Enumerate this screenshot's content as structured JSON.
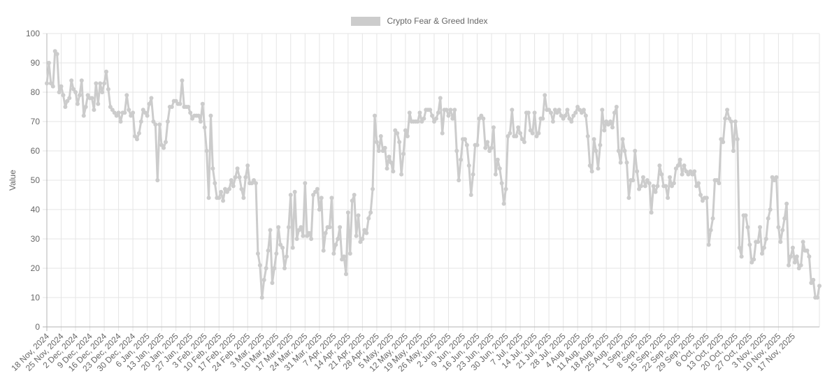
{
  "chart_data": {
    "type": "line",
    "title": "",
    "legend": {
      "label": "Crypto Fear & Greed Index",
      "position": "top",
      "color": "#cccccc"
    },
    "xlabel": "",
    "ylabel": "Value",
    "ylim": [
      0,
      100
    ],
    "y_ticks": [
      0,
      10,
      20,
      30,
      40,
      50,
      60,
      70,
      80,
      90,
      100
    ],
    "grid": true,
    "line_color": "#cccccc",
    "x_start": "18 Nov, 2024",
    "x_end": "20 Nov, 2025",
    "x_tick_labels": [
      "18 Nov, 2024",
      "25 Nov, 2024",
      "2 Dec, 2024",
      "9 Dec, 2024",
      "16 Dec, 2024",
      "23 Dec, 2024",
      "30 Dec, 2024",
      "6 Jan, 2025",
      "13 Jan, 2025",
      "20 Jan, 2025",
      "27 Jan, 2025",
      "3 Feb, 2025",
      "10 Feb, 2025",
      "17 Feb, 2025",
      "24 Feb, 2025",
      "3 Mar, 2025",
      "10 Mar, 2025",
      "17 Mar, 2025",
      "24 Mar, 2025",
      "31 Mar, 2025",
      "7 Apr, 2025",
      "14 Apr, 2025",
      "21 Apr, 2025",
      "28 Apr, 2025",
      "5 May, 2025",
      "12 May, 2025",
      "19 May, 2025",
      "26 May, 2025",
      "2 Jun, 2025",
      "9 Jun, 2025",
      "16 Jun, 2025",
      "23 Jun, 2025",
      "30 Jun, 2025",
      "7 Jul, 2025",
      "14 Jul, 2025",
      "21 Jul, 2025",
      "28 Jul, 2025",
      "4 Aug, 2025",
      "11 Aug, 2025",
      "18 Aug, 2025",
      "25 Aug, 2025",
      "1 Sep, 2025",
      "8 Sep, 2025",
      "15 Sep, 2025",
      "22 Sep, 2025",
      "29 Sep, 2025",
      "6 Oct, 2025",
      "13 Oct, 2025",
      "20 Oct, 2025",
      "27 Oct, 2025",
      "3 Nov, 2025",
      "10 Nov, 2025",
      "17 Nov, 2025"
    ],
    "series": [
      {
        "name": "Crypto Fear & Greed Index",
        "frequency": "daily",
        "values": [
          83,
          90,
          83,
          82,
          94,
          93,
          80,
          82,
          79,
          75,
          77,
          78,
          84,
          81,
          80,
          76,
          79,
          84,
          72,
          75,
          79,
          78,
          78,
          74,
          83,
          76,
          83,
          80,
          83,
          87,
          81,
          75,
          74,
          73,
          72,
          73,
          70,
          73,
          73,
          79,
          74,
          72,
          73,
          65,
          64,
          66,
          70,
          74,
          73,
          72,
          76,
          78,
          70,
          69,
          50,
          69,
          62,
          61,
          63,
          70,
          75,
          75,
          77,
          77,
          76,
          76,
          84,
          75,
          75,
          75,
          73,
          71,
          72,
          72,
          72,
          70,
          76,
          68,
          60,
          44,
          72,
          54,
          49,
          44,
          44,
          46,
          43,
          47,
          46,
          47,
          50,
          48,
          51,
          54,
          51,
          47,
          44,
          51,
          55,
          49,
          49,
          50,
          49,
          25,
          21,
          10,
          16,
          20,
          26,
          33,
          15,
          20,
          25,
          34,
          28,
          27,
          20,
          24,
          34,
          45,
          27,
          46,
          30,
          33,
          34,
          31,
          49,
          31,
          32,
          30,
          45,
          46,
          47,
          40,
          44,
          26,
          32,
          34,
          34,
          44,
          25,
          28,
          30,
          34,
          23,
          24,
          18,
          39,
          25,
          43,
          45,
          31,
          38,
          29,
          30,
          33,
          32,
          37,
          39,
          47,
          72,
          63,
          60,
          65,
          60,
          61,
          54,
          58,
          56,
          53,
          67,
          66,
          63,
          52,
          59,
          67,
          65,
          73,
          70,
          70,
          70,
          70,
          73,
          70,
          71,
          74,
          74,
          74,
          72,
          70,
          71,
          73,
          78,
          66,
          74,
          74,
          72,
          74,
          71,
          74,
          60,
          50,
          57,
          64,
          64,
          62,
          55,
          45,
          52,
          62,
          62,
          71,
          72,
          71,
          61,
          63,
          60,
          61,
          68,
          52,
          57,
          54,
          49,
          42,
          47,
          65,
          66,
          74,
          65,
          65,
          68,
          66,
          64,
          63,
          73,
          73,
          67,
          66,
          73,
          65,
          66,
          71,
          71,
          79,
          74,
          74,
          73,
          70,
          74,
          73,
          74,
          72,
          71,
          72,
          74,
          71,
          70,
          72,
          73,
          75,
          74,
          73,
          74,
          72,
          65,
          55,
          53,
          64,
          60,
          54,
          62,
          74,
          67,
          70,
          69,
          70,
          68,
          73,
          75,
          60,
          56,
          64,
          60,
          56,
          44,
          50,
          50,
          60,
          53,
          47,
          48,
          51,
          48,
          50,
          49,
          39,
          48,
          46,
          48,
          55,
          52,
          48,
          48,
          44,
          51,
          48,
          49,
          54,
          55,
          57,
          52,
          55,
          53,
          52,
          53,
          52,
          53,
          48,
          49,
          45,
          43,
          44,
          44,
          28,
          33,
          37,
          50,
          50,
          49,
          64,
          63,
          71,
          74,
          71,
          70,
          60,
          70,
          64,
          27,
          24,
          38,
          38,
          34,
          28,
          22,
          23,
          29,
          29,
          34,
          25,
          27,
          30,
          37,
          40,
          51,
          50,
          51,
          34,
          29,
          33,
          37,
          42,
          21,
          24,
          27,
          22,
          24,
          20,
          21,
          29,
          26,
          26,
          24,
          15,
          16,
          10,
          10,
          14
        ]
      }
    ]
  }
}
